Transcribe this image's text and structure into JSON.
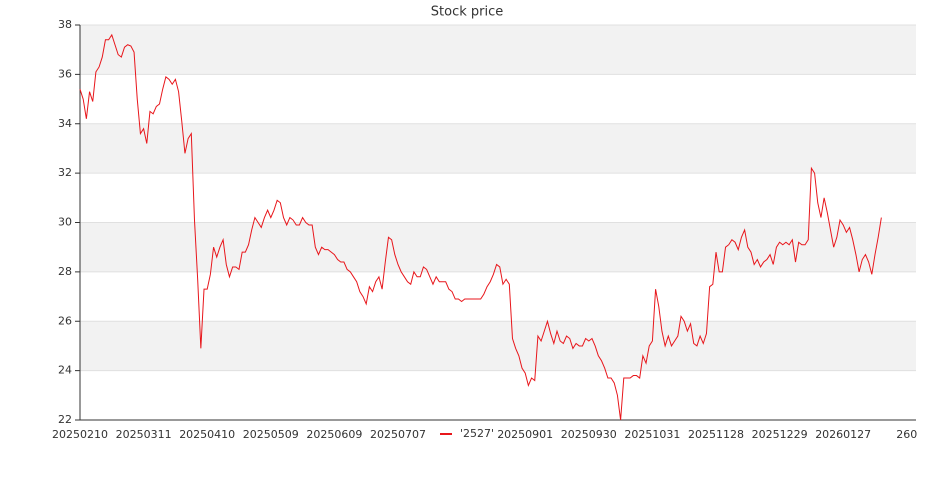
{
  "chart_data": {
    "type": "line",
    "title": "Stock price",
    "categories": [
      "20250210",
      null,
      null,
      null,
      null,
      null,
      null,
      null,
      null,
      null,
      null,
      null,
      null,
      null,
      null,
      null,
      null,
      null,
      null,
      null,
      "20250311",
      null,
      null,
      null,
      null,
      null,
      null,
      null,
      null,
      null,
      null,
      null,
      null,
      null,
      null,
      null,
      null,
      null,
      null,
      null,
      "20250410",
      null,
      null,
      null,
      null,
      null,
      null,
      null,
      null,
      null,
      null,
      null,
      null,
      null,
      null,
      null,
      null,
      null,
      null,
      null,
      "20250509",
      null,
      null,
      null,
      null,
      null,
      null,
      null,
      null,
      null,
      null,
      null,
      null,
      null,
      null,
      null,
      null,
      null,
      null,
      null,
      "20250609",
      null,
      null,
      null,
      null,
      null,
      null,
      null,
      null,
      null,
      null,
      null,
      null,
      null,
      null,
      null,
      null,
      null,
      null,
      null,
      "20250707",
      null,
      null,
      null,
      null,
      null,
      null,
      null,
      null,
      null,
      null,
      null,
      null,
      null,
      null,
      null,
      null,
      null,
      null,
      null,
      null,
      null,
      null,
      null,
      null,
      null,
      null,
      null,
      null,
      null,
      null,
      null,
      null,
      null,
      null,
      null,
      null,
      null,
      null,
      null,
      "20250901",
      null,
      null,
      null,
      null,
      null,
      null,
      null,
      null,
      null,
      null,
      null,
      null,
      null,
      null,
      null,
      null,
      null,
      null,
      null,
      "20250930",
      null,
      null,
      null,
      null,
      null,
      null,
      null,
      null,
      null,
      null,
      null,
      null,
      null,
      null,
      null,
      null,
      null,
      null,
      null,
      "20251031",
      null,
      null,
      null,
      null,
      null,
      null,
      null,
      null,
      null,
      null,
      null,
      null,
      null,
      null,
      null,
      null,
      null,
      null,
      null,
      "20251128",
      null,
      null,
      null,
      null,
      null,
      null,
      null,
      null,
      null,
      null,
      null,
      null,
      null,
      null,
      null,
      null,
      null,
      null,
      null,
      "20251229",
      null,
      null,
      null,
      null,
      null,
      null,
      null,
      null,
      null,
      null,
      null,
      null,
      null,
      null,
      null,
      null,
      null,
      null,
      null,
      "20260127",
      null,
      null,
      null,
      null,
      null,
      null,
      null,
      null,
      null,
      null,
      null,
      null,
      null,
      null,
      null,
      null,
      null,
      null,
      null,
      "260"
    ],
    "series": [
      {
        "name": "'2527'",
        "color": "#e8161b",
        "values": [
          35.4,
          35.0,
          34.2,
          35.3,
          34.9,
          36.1,
          36.3,
          36.7,
          37.4,
          37.4,
          37.6,
          37.2,
          36.8,
          36.7,
          37.1,
          37.2,
          37.15,
          36.9,
          35.0,
          33.6,
          33.8,
          33.2,
          34.5,
          34.4,
          34.7,
          34.8,
          35.4,
          35.9,
          35.8,
          35.6,
          35.8,
          35.3,
          34.1,
          32.8,
          33.4,
          33.6,
          30.1,
          27.7,
          24.9,
          27.3,
          27.3,
          27.9,
          29.0,
          28.6,
          29.0,
          29.3,
          28.3,
          27.8,
          28.2,
          28.2,
          28.1,
          28.8,
          28.8,
          29.1,
          29.7,
          30.2,
          30.0,
          29.8,
          30.2,
          30.5,
          30.2,
          30.5,
          30.9,
          30.8,
          30.2,
          29.9,
          30.2,
          30.1,
          29.9,
          29.9,
          30.2,
          30.0,
          29.9,
          29.9,
          29.0,
          28.7,
          29.0,
          28.9,
          28.9,
          28.8,
          28.7,
          28.5,
          28.4,
          28.4,
          28.1,
          28.0,
          27.8,
          27.6,
          27.2,
          27.0,
          26.7,
          27.4,
          27.2,
          27.6,
          27.8,
          27.3,
          28.4,
          29.4,
          29.3,
          28.7,
          28.3,
          28.0,
          27.8,
          27.6,
          27.5,
          28.0,
          27.8,
          27.8,
          28.2,
          28.1,
          27.8,
          27.5,
          27.8,
          27.6,
          27.6,
          27.6,
          27.3,
          27.2,
          26.9,
          26.9,
          26.8,
          26.9,
          26.9,
          26.9,
          26.9,
          26.9,
          26.9,
          27.1,
          27.4,
          27.6,
          27.9,
          28.3,
          28.2,
          27.5,
          27.7,
          27.5,
          25.3,
          24.9,
          24.6,
          24.1,
          23.9,
          23.4,
          23.7,
          23.6,
          25.4,
          25.2,
          25.6,
          26.0,
          25.5,
          25.1,
          25.6,
          25.2,
          25.1,
          25.4,
          25.3,
          24.9,
          25.1,
          25.0,
          25.0,
          25.3,
          25.2,
          25.3,
          25.0,
          24.6,
          24.4,
          24.1,
          23.7,
          23.7,
          23.5,
          23.0,
          22.0,
          23.7,
          23.7,
          23.7,
          23.8,
          23.8,
          23.7,
          24.6,
          24.3,
          25.0,
          25.2,
          27.3,
          26.6,
          25.6,
          25.0,
          25.4,
          25.0,
          25.2,
          25.4,
          26.2,
          26.0,
          25.6,
          25.9,
          25.1,
          25.0,
          25.4,
          25.1,
          25.5,
          27.4,
          27.5,
          28.8,
          28.0,
          28.0,
          29.0,
          29.1,
          29.3,
          29.2,
          28.9,
          29.4,
          29.7,
          29.0,
          28.8,
          28.3,
          28.5,
          28.2,
          28.4,
          28.5,
          28.7,
          28.3,
          29.0,
          29.2,
          29.1,
          29.2,
          29.1,
          29.3,
          28.4,
          29.2,
          29.1,
          29.1,
          29.3,
          32.2,
          32.0,
          30.8,
          30.2,
          31.0,
          30.4,
          29.7,
          29.0,
          29.4,
          30.1,
          29.9,
          29.6,
          29.8,
          29.3,
          28.7,
          28.0,
          28.5,
          28.7,
          28.4,
          27.9,
          28.7,
          29.4,
          30.2,
          null,
          null,
          null,
          null,
          null,
          null,
          null,
          null
        ]
      }
    ],
    "ylim": [
      22,
      38
    ],
    "yticks": [
      22,
      24,
      26,
      28,
      30,
      32,
      34,
      36,
      38
    ],
    "grid": true,
    "legend": "bottom"
  }
}
